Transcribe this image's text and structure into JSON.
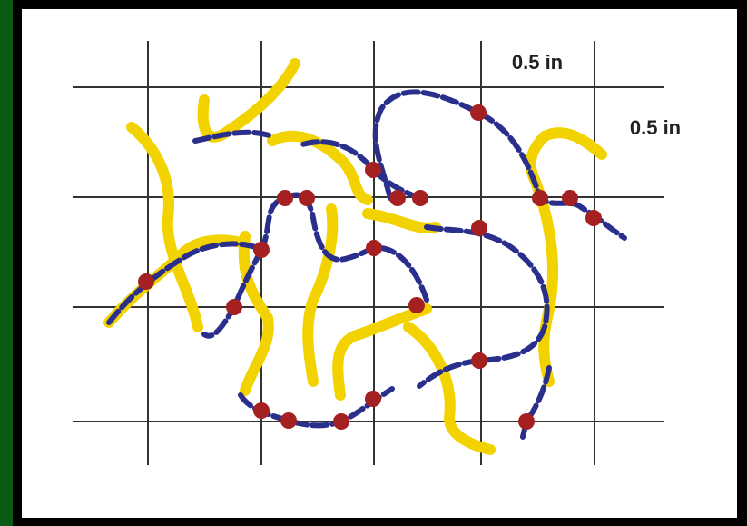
{
  "labels": {
    "horizontal_spacing": "0.5 in",
    "vertical_spacing": "0.5 in"
  }
}
